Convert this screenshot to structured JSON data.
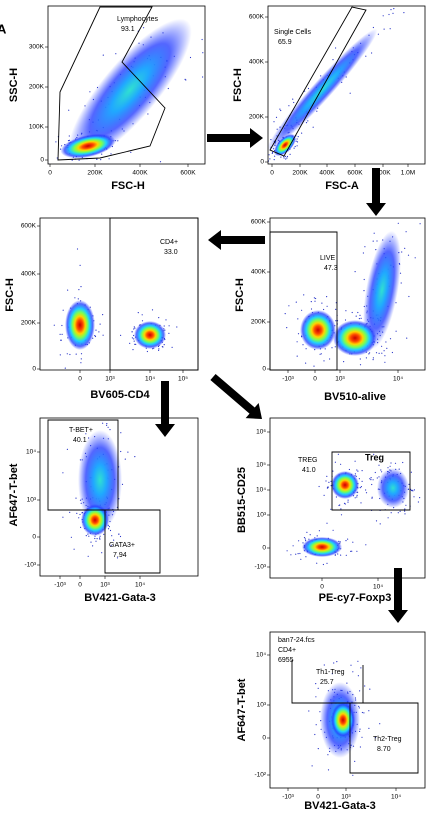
{
  "figure_label": "A",
  "panels": [
    {
      "y_label": "SSC-H",
      "x_label": "FSC-H",
      "y_ticks": [
        "0",
        "100K",
        "200K",
        "300K"
      ],
      "x_ticks": [
        "0",
        "200K",
        "400K",
        "600K"
      ],
      "gates": [
        {
          "name": "Lymphocytes",
          "value": "93.1"
        }
      ]
    },
    {
      "y_label": "FSC-H",
      "x_label": "FSC-A",
      "y_ticks": [
        "0",
        "200K",
        "400K",
        "600K"
      ],
      "x_ticks": [
        "0",
        "200K",
        "400K",
        "600K",
        "800K",
        "1.0M"
      ],
      "gates": [
        {
          "name": "Single Cells",
          "value": "65.9"
        }
      ]
    },
    {
      "y_label": "FSC-H",
      "x_label": "BV605-CD4",
      "y_ticks": [
        "0",
        "200K",
        "400K",
        "600K"
      ],
      "x_ticks": [
        "0",
        "10³",
        "10⁴",
        "10⁵"
      ],
      "gates": [
        {
          "name": "CD4+",
          "value": "33.0"
        }
      ]
    },
    {
      "y_label": "FSC-H",
      "x_label": "BV510-alive",
      "y_ticks": [
        "0",
        "200K",
        "400K",
        "600K"
      ],
      "x_ticks": [
        "-10³",
        "0",
        "10³",
        "10⁴"
      ],
      "gates": [
        {
          "name": "LIVE",
          "value": "47.3"
        }
      ]
    },
    {
      "y_label": "AF647-T-bet",
      "x_label": "BV421-Gata-3",
      "y_ticks": [
        "-10³",
        "0",
        "10³",
        "10⁴"
      ],
      "x_ticks": [
        "-10³",
        "0",
        "10³",
        "10⁴"
      ],
      "gates": [
        {
          "name": "T-BET+",
          "value": "40.1"
        },
        {
          "name": "GATA3+",
          "value": "7.94"
        }
      ]
    },
    {
      "title": "Treg",
      "y_label": "BB515-CD25",
      "x_label": "PE-cy7-Foxp3",
      "y_ticks": [
        "-10³",
        "0",
        "10³",
        "10⁴",
        "10⁵",
        "10⁶"
      ],
      "x_ticks": [
        "0",
        "10⁴"
      ],
      "gates": [
        {
          "name": "TREG",
          "value": "41.0"
        }
      ]
    },
    {
      "y_label": "AF647-T-bet",
      "x_label": "BV421-Gata-3",
      "y_ticks": [
        "-10²",
        "0",
        "10³",
        "10⁴"
      ],
      "x_ticks": [
        "-10³",
        "0",
        "10³",
        "10⁴"
      ],
      "sample": [
        "ban7-24.fcs",
        "CD4+",
        "6955"
      ],
      "gates": [
        {
          "name": "Th1-Treg",
          "value": "25.7"
        },
        {
          "name": "Th2-Treg",
          "value": "8.70"
        }
      ]
    }
  ]
}
